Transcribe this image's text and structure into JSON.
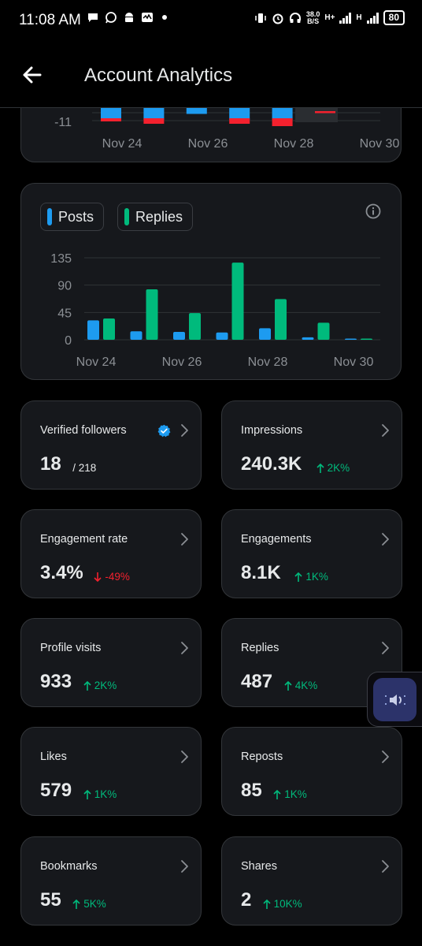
{
  "status_bar": {
    "time": "11:08 AM",
    "speed_value": "38.0",
    "speed_unit": "B/S",
    "net1": "H+",
    "net2": "H",
    "battery": "80",
    "icons": [
      "message-icon",
      "whatsapp-icon",
      "android-icon",
      "activity-icon",
      "dot-icon",
      "vibrate-icon",
      "alarm-icon",
      "headset-icon"
    ]
  },
  "header": {
    "title": "Account Analytics"
  },
  "chart_data": [
    {
      "type": "bar",
      "categories": [
        "Nov 24",
        "Nov 25",
        "Nov 26",
        "Nov 27",
        "Nov 28",
        "Nov 29"
      ],
      "x_tick_labels": [
        "Nov 24",
        "Nov 26",
        "Nov 28",
        "Nov 30"
      ],
      "y_tick_labels": [
        "-11"
      ],
      "series": [
        {
          "values": [
            -3,
            -3,
            -0.5,
            -3,
            -3,
            0
          ],
          "color": "#1d9bf0"
        },
        {
          "values": [
            -1,
            -2,
            0,
            -2,
            -3,
            -0.5
          ],
          "color": "#f4212e"
        }
      ],
      "ylim": [
        -11,
        0
      ],
      "grid": true
    },
    {
      "type": "bar",
      "categories": [
        "Nov 24",
        "Nov 25",
        "Nov 26",
        "Nov 27",
        "Nov 28",
        "Nov 29",
        "Nov 30"
      ],
      "x_tick_labels": [
        "Nov 24",
        "Nov 26",
        "Nov 28",
        "Nov 30"
      ],
      "y_ticks": [
        0,
        45,
        90,
        135
      ],
      "ylim": [
        0,
        135
      ],
      "grid": true,
      "legend_position": "top-left",
      "series": [
        {
          "name": "Posts",
          "color": "#1d9bf0",
          "values": [
            32,
            14,
            13,
            12,
            19,
            4,
            1
          ]
        },
        {
          "name": "Replies",
          "color": "#00ba7c",
          "values": [
            35,
            83,
            44,
            127,
            67,
            28,
            2
          ]
        }
      ]
    }
  ],
  "metrics": [
    {
      "label": "Verified followers",
      "value": "18",
      "sub": "/ 218",
      "change": "",
      "direction": "",
      "verified": true
    },
    {
      "label": "Impressions",
      "value": "240.3K",
      "sub": "",
      "change": "2K%",
      "direction": "up"
    },
    {
      "label": "Engagement rate",
      "value": "3.4%",
      "sub": "",
      "change": "-49%",
      "direction": "down"
    },
    {
      "label": "Engagements",
      "value": "8.1K",
      "sub": "",
      "change": "1K%",
      "direction": "up"
    },
    {
      "label": "Profile visits",
      "value": "933",
      "sub": "",
      "change": "2K%",
      "direction": "up"
    },
    {
      "label": "Replies",
      "value": "487",
      "sub": "",
      "change": "4K%",
      "direction": "up"
    },
    {
      "label": "Likes",
      "value": "579",
      "sub": "",
      "change": "1K%",
      "direction": "up"
    },
    {
      "label": "Reposts",
      "value": "85",
      "sub": "",
      "change": "1K%",
      "direction": "up"
    },
    {
      "label": "Bookmarks",
      "value": "55",
      "sub": "",
      "change": "5K%",
      "direction": "up"
    },
    {
      "label": "Shares",
      "value": "2",
      "sub": "",
      "change": "10K%",
      "direction": "up"
    }
  ],
  "colors": {
    "background": "#000000",
    "card": "#16181c",
    "posts": "#1d9bf0",
    "replies": "#00ba7c",
    "negative": "#f4212e",
    "up": "#00ba7c",
    "down": "#f4212e",
    "verified": "#1d9bf0"
  },
  "floating_button": {
    "icon": "speaker-icon"
  }
}
